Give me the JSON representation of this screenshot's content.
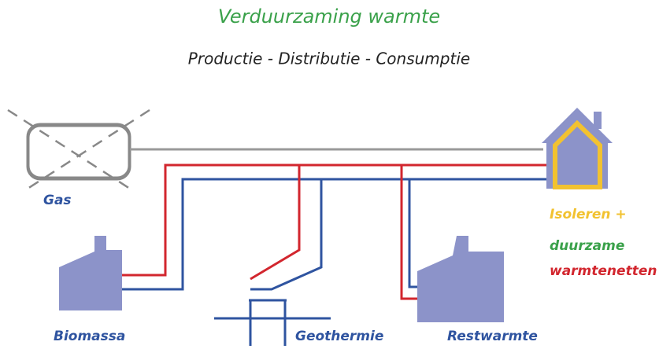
{
  "title": "Verduurzaming warmte",
  "subtitle": "Productie - Distributie - Consumptie",
  "labels": {
    "gas": "Gas",
    "biomassa": "Biomassa",
    "geothermie": "Geothermie",
    "restwarmte": "Restwarmte"
  },
  "legend": [
    "Isoleren +",
    "duurzame",
    "warmtenetten"
  ]
}
